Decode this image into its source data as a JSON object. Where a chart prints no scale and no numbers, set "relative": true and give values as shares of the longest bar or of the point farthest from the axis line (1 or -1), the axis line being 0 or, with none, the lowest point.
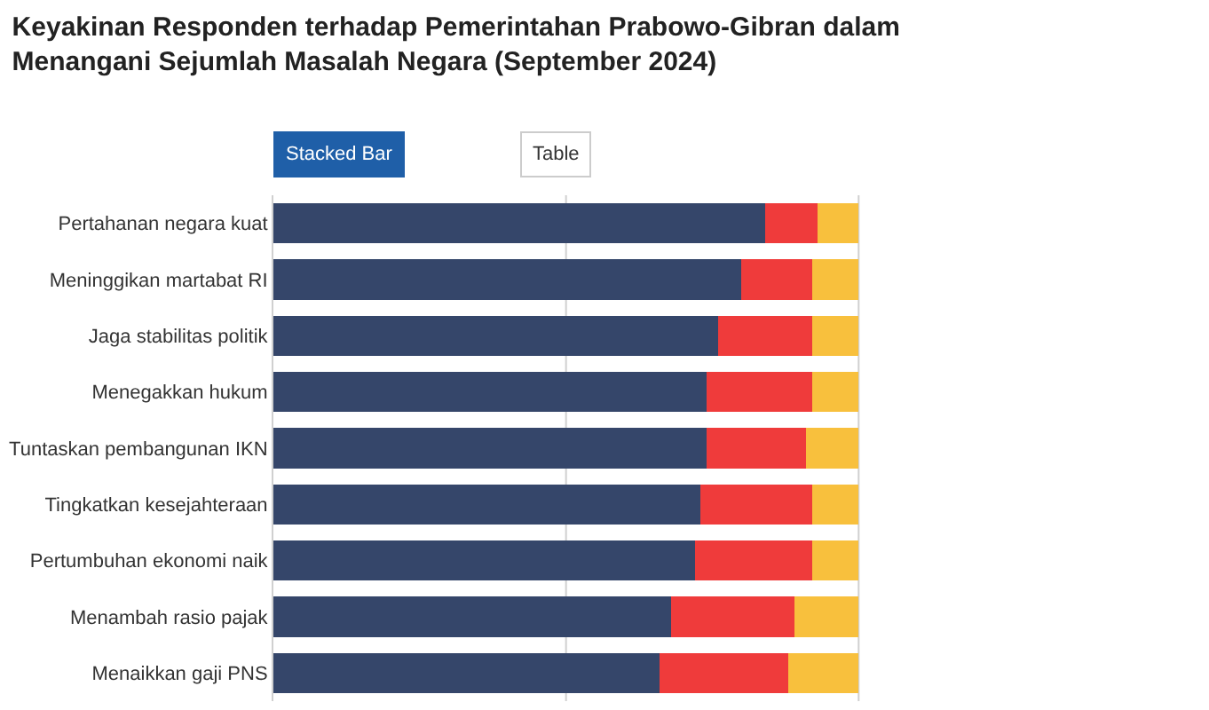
{
  "chart_data": {
    "type": "bar",
    "orientation": "horizontal",
    "stacked": true,
    "relative": true,
    "ref_lines": [
      {
        "axis": "x",
        "value": 0.5,
        "color": "#d0d0d0"
      },
      {
        "axis": "x",
        "value": 1,
        "color": "#d0d0d0"
      }
    ],
    "legend": false,
    "title": "Keyakinan Responden terhadap Pemerintahan Prabowo-Gibran dalam\nMenangani Sejumlah Masalah Negara (September 2024)",
    "annotations": [
      "Stacked Bar",
      "Table"
    ],
    "categories": [
      "Pertahanan negara kuat",
      "Meninggikan martabat RI",
      "Jaga stabilitas politik",
      "Menegakkan hukum",
      "Tuntaskan pembangunan IKN",
      "Tingkatkan kesejahteraan",
      "Pertumbuhan ekonomi naik",
      "Menambah rasio pajak",
      "Menaikkan gaji PNS"
    ],
    "series": [
      {
        "color": "#35466a",
        "values": [
          0.84,
          0.8,
          0.76,
          0.74,
          0.74,
          0.73,
          0.72,
          0.68,
          0.66
        ]
      },
      {
        "color": "#ef3b3b",
        "values": [
          0.09,
          0.12,
          0.16,
          0.18,
          0.17,
          0.19,
          0.2,
          0.21,
          0.22
        ]
      },
      {
        "color": "#f8c03d",
        "values": [
          0.07,
          0.08,
          0.08,
          0.08,
          0.09,
          0.08,
          0.08,
          0.11,
          0.12
        ]
      }
    ]
  }
}
